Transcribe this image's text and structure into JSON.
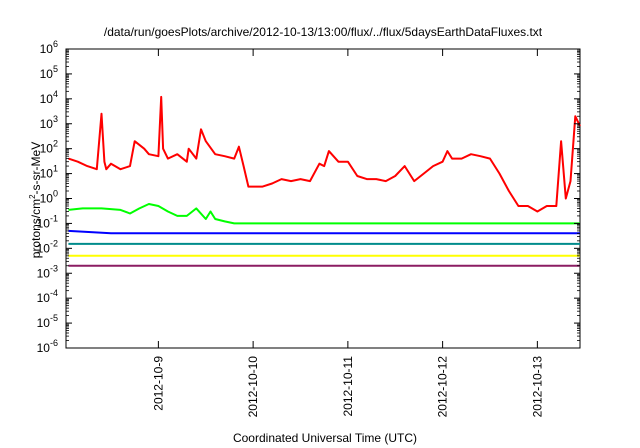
{
  "chart_data": {
    "type": "line",
    "title": "/data/run/goesPlots/archive/2012-10-13/13:00/flux/../flux/5daysEarthDataFluxes.txt",
    "xlabel": "Coordinated Universal Time (UTC)",
    "ylabel": {
      "base": "protons/cm",
      "sup": "2",
      "rest": "-s-sr-MeV"
    },
    "yscale": "log",
    "ylim": [
      1e-06,
      1000000.0
    ],
    "xlim": [
      -0.975,
      4.45
    ],
    "x_origin_label": "2012-10-09",
    "x_tick_labels": [
      "2012-10-9",
      "2012-10-10",
      "2012-10-11",
      "2012-10-12",
      "2012-10-13"
    ],
    "x_tick_values": [
      0,
      1,
      2,
      3,
      4
    ],
    "y_tick_exponents": [
      -6,
      -5,
      -4,
      -3,
      -2,
      -1,
      0,
      1,
      2,
      3,
      4,
      5,
      6
    ],
    "grid": false,
    "legend": "none",
    "series": [
      {
        "color": "#ff0000",
        "x": [
          -0.95,
          -0.85,
          -0.75,
          -0.65,
          -0.6,
          -0.57,
          -0.55,
          -0.5,
          -0.4,
          -0.3,
          -0.25,
          -0.15,
          -0.1,
          0,
          0.03,
          0.05,
          0.1,
          0.2,
          0.3,
          0.32,
          0.4,
          0.45,
          0.5,
          0.6,
          0.7,
          0.8,
          0.85,
          0.9,
          0.95,
          1.0,
          1.1,
          1.2,
          1.3,
          1.4,
          1.5,
          1.6,
          1.7,
          1.75,
          1.8,
          1.9,
          2.0,
          2.1,
          2.2,
          2.3,
          2.4,
          2.5,
          2.6,
          2.7,
          2.8,
          2.9,
          3.0,
          3.05,
          3.1,
          3.2,
          3.3,
          3.4,
          3.5,
          3.6,
          3.7,
          3.8,
          3.9,
          4.0,
          4.1,
          4.2,
          4.25,
          4.3,
          4.35,
          4.4,
          4.45
        ],
        "y": [
          40,
          30,
          20,
          15,
          2500,
          30,
          15,
          25,
          15,
          20,
          200,
          100,
          60,
          50,
          12000,
          100,
          40,
          60,
          30,
          100,
          40,
          600,
          200,
          60,
          50,
          40,
          120,
          20,
          3,
          3,
          3,
          4,
          6,
          5,
          6,
          5,
          25,
          20,
          80,
          30,
          30,
          8,
          6,
          6,
          5,
          8,
          20,
          5,
          10,
          20,
          30,
          80,
          40,
          40,
          60,
          50,
          40,
          10,
          2,
          0.5,
          0.5,
          0.3,
          0.5,
          0.5,
          200,
          1,
          5,
          2000,
          800
        ]
      },
      {
        "color": "#00ff00",
        "x": [
          -0.95,
          -0.8,
          -0.6,
          -0.4,
          -0.3,
          -0.2,
          -0.1,
          0,
          0.1,
          0.2,
          0.3,
          0.4,
          0.5,
          0.55,
          0.6,
          0.7,
          0.8,
          0.9,
          1.0,
          1.5,
          2.0,
          2.5,
          3.0,
          3.5,
          4.0,
          4.45
        ],
        "y": [
          0.35,
          0.4,
          0.4,
          0.35,
          0.25,
          0.4,
          0.6,
          0.5,
          0.3,
          0.2,
          0.2,
          0.4,
          0.15,
          0.3,
          0.15,
          0.12,
          0.1,
          0.1,
          0.1,
          0.1,
          0.1,
          0.1,
          0.1,
          0.1,
          0.1,
          0.1
        ]
      },
      {
        "color": "#0000ff",
        "x": [
          -0.95,
          -0.5,
          0,
          0.5,
          1.0,
          1.5,
          2.0,
          2.5,
          3.0,
          3.5,
          4.0,
          4.45
        ],
        "y": [
          0.05,
          0.04,
          0.04,
          0.04,
          0.04,
          0.04,
          0.04,
          0.04,
          0.04,
          0.04,
          0.04,
          0.04
        ]
      },
      {
        "color": "#008b8b",
        "x": [
          -0.95,
          -0.5,
          0,
          0.5,
          1.0,
          1.5,
          2.0,
          2.5,
          3.0,
          3.5,
          4.0,
          4.45
        ],
        "y": [
          0.015,
          0.015,
          0.015,
          0.015,
          0.015,
          0.015,
          0.015,
          0.015,
          0.015,
          0.015,
          0.015,
          0.015
        ]
      },
      {
        "color": "#ffff00",
        "x": [
          -0.95,
          -0.5,
          0,
          0.5,
          1.0,
          1.5,
          2.0,
          2.5,
          3.0,
          3.5,
          4.0,
          4.45
        ],
        "y": [
          0.005,
          0.005,
          0.005,
          0.005,
          0.005,
          0.005,
          0.005,
          0.005,
          0.005,
          0.005,
          0.005,
          0.005
        ]
      },
      {
        "color": "#8b1c62",
        "x": [
          -0.95,
          -0.5,
          0,
          0.5,
          1.0,
          1.5,
          2.0,
          2.5,
          3.0,
          3.5,
          4.0,
          4.45
        ],
        "y": [
          0.002,
          0.002,
          0.002,
          0.002,
          0.002,
          0.002,
          0.002,
          0.002,
          0.002,
          0.002,
          0.002,
          0.002
        ]
      }
    ]
  }
}
